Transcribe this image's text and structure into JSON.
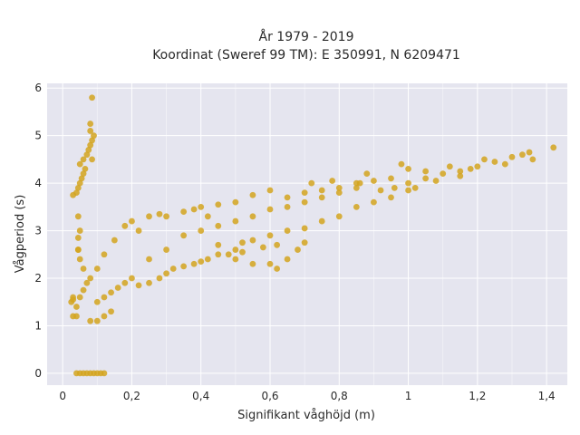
{
  "chart_data": {
    "type": "scatter",
    "title_line1": "År 1979 - 2019",
    "title_line2": "Koordinat (Sweref 99 TM): E 350991, N 6209471",
    "xlabel": "Signifikant våghöjd (m)",
    "ylabel": "Vågperiod (s)",
    "xlim": [
      -0.045,
      1.46
    ],
    "ylim": [
      -0.25,
      6.1
    ],
    "xticks": [
      0,
      0.2,
      0.4,
      0.6,
      0.8,
      1.0,
      1.2,
      1.4
    ],
    "xtick_labels": [
      "0",
      "0,2",
      "0,4",
      "0,6",
      "0,8",
      "1",
      "1,2",
      "1,4"
    ],
    "yticks": [
      0,
      1,
      2,
      3,
      4,
      5,
      6
    ],
    "ytick_labels": [
      "0",
      "1",
      "2",
      "3",
      "4",
      "5",
      "6"
    ],
    "grid": true,
    "marker_color": "#D4A51E",
    "plot_background": "#E5E5EF",
    "points": [
      [
        0.04,
        0.0
      ],
      [
        0.05,
        0.0
      ],
      [
        0.06,
        0.0
      ],
      [
        0.07,
        0.0
      ],
      [
        0.08,
        0.0
      ],
      [
        0.09,
        0.0
      ],
      [
        0.1,
        0.0
      ],
      [
        0.11,
        0.0
      ],
      [
        0.12,
        0.0
      ],
      [
        0.03,
        1.55
      ],
      [
        0.03,
        1.6
      ],
      [
        0.025,
        1.5
      ],
      [
        0.03,
        1.2
      ],
      [
        0.04,
        1.2
      ],
      [
        0.04,
        1.4
      ],
      [
        0.05,
        1.6
      ],
      [
        0.06,
        1.75
      ],
      [
        0.07,
        1.9
      ],
      [
        0.08,
        2.0
      ],
      [
        0.06,
        2.2
      ],
      [
        0.05,
        2.4
      ],
      [
        0.045,
        2.6
      ],
      [
        0.045,
        3.3
      ],
      [
        0.05,
        3.0
      ],
      [
        0.045,
        2.85
      ],
      [
        0.045,
        2.6
      ],
      [
        0.03,
        3.75
      ],
      [
        0.04,
        3.8
      ],
      [
        0.045,
        3.9
      ],
      [
        0.05,
        4.0
      ],
      [
        0.055,
        4.1
      ],
      [
        0.06,
        4.2
      ],
      [
        0.065,
        4.3
      ],
      [
        0.05,
        4.4
      ],
      [
        0.06,
        4.5
      ],
      [
        0.07,
        4.6
      ],
      [
        0.075,
        4.7
      ],
      [
        0.08,
        4.8
      ],
      [
        0.085,
        4.9
      ],
      [
        0.09,
        5.0
      ],
      [
        0.08,
        5.1
      ],
      [
        0.085,
        4.5
      ],
      [
        0.08,
        5.25
      ],
      [
        0.085,
        5.8
      ],
      [
        0.08,
        1.1
      ],
      [
        0.1,
        1.1
      ],
      [
        0.12,
        1.2
      ],
      [
        0.14,
        1.3
      ],
      [
        0.1,
        1.5
      ],
      [
        0.12,
        1.6
      ],
      [
        0.14,
        1.7
      ],
      [
        0.16,
        1.8
      ],
      [
        0.18,
        1.9
      ],
      [
        0.2,
        2.0
      ],
      [
        0.1,
        2.2
      ],
      [
        0.12,
        2.5
      ],
      [
        0.15,
        2.8
      ],
      [
        0.18,
        3.1
      ],
      [
        0.2,
        3.2
      ],
      [
        0.22,
        3.0
      ],
      [
        0.25,
        3.3
      ],
      [
        0.28,
        3.35
      ],
      [
        0.3,
        3.3
      ],
      [
        0.35,
        3.4
      ],
      [
        0.38,
        3.45
      ],
      [
        0.22,
        1.85
      ],
      [
        0.25,
        1.9
      ],
      [
        0.28,
        2.0
      ],
      [
        0.3,
        2.1
      ],
      [
        0.32,
        2.2
      ],
      [
        0.35,
        2.25
      ],
      [
        0.38,
        2.3
      ],
      [
        0.4,
        2.35
      ],
      [
        0.42,
        2.4
      ],
      [
        0.45,
        2.5
      ],
      [
        0.48,
        2.5
      ],
      [
        0.5,
        2.6
      ],
      [
        0.52,
        2.55
      ],
      [
        0.25,
        2.4
      ],
      [
        0.3,
        2.6
      ],
      [
        0.35,
        2.9
      ],
      [
        0.4,
        3.0
      ],
      [
        0.45,
        3.1
      ],
      [
        0.5,
        3.2
      ],
      [
        0.55,
        3.3
      ],
      [
        0.6,
        3.45
      ],
      [
        0.65,
        3.5
      ],
      [
        0.7,
        3.6
      ],
      [
        0.75,
        3.7
      ],
      [
        0.8,
        3.8
      ],
      [
        0.85,
        3.9
      ],
      [
        0.55,
        2.8
      ],
      [
        0.6,
        2.9
      ],
      [
        0.65,
        3.0
      ],
      [
        0.7,
        3.05
      ],
      [
        0.75,
        3.2
      ],
      [
        0.8,
        3.3
      ],
      [
        0.85,
        3.5
      ],
      [
        0.9,
        3.6
      ],
      [
        0.95,
        3.7
      ],
      [
        1.0,
        3.85
      ],
      [
        0.5,
        2.4
      ],
      [
        0.55,
        2.3
      ],
      [
        0.6,
        2.3
      ],
      [
        0.62,
        2.2
      ],
      [
        0.65,
        2.4
      ],
      [
        0.68,
        2.6
      ],
      [
        0.7,
        2.75
      ],
      [
        0.45,
        2.7
      ],
      [
        0.52,
        2.75
      ],
      [
        0.58,
        2.65
      ],
      [
        0.62,
        2.7
      ],
      [
        0.65,
        3.7
      ],
      [
        0.7,
        3.8
      ],
      [
        0.75,
        3.85
      ],
      [
        0.8,
        3.9
      ],
      [
        0.85,
        4.0
      ],
      [
        0.9,
        4.05
      ],
      [
        0.95,
        4.1
      ],
      [
        1.0,
        4.0
      ],
      [
        1.05,
        4.1
      ],
      [
        1.1,
        4.2
      ],
      [
        1.15,
        4.25
      ],
      [
        1.2,
        4.35
      ],
      [
        1.25,
        4.45
      ],
      [
        1.3,
        4.55
      ],
      [
        1.35,
        4.65
      ],
      [
        1.42,
        4.75
      ],
      [
        1.05,
        4.25
      ],
      [
        1.12,
        4.35
      ],
      [
        1.18,
        4.3
      ],
      [
        1.22,
        4.5
      ],
      [
        1.28,
        4.4
      ],
      [
        1.33,
        4.6
      ],
      [
        1.36,
        4.5
      ],
      [
        1.02,
        3.9
      ],
      [
        1.08,
        4.05
      ],
      [
        1.15,
        4.15
      ],
      [
        0.96,
        3.9
      ],
      [
        0.92,
        3.85
      ],
      [
        1.0,
        4.3
      ],
      [
        0.98,
        4.4
      ],
      [
        0.88,
        4.2
      ],
      [
        0.86,
        4.0
      ],
      [
        0.78,
        4.05
      ],
      [
        0.72,
        4.0
      ],
      [
        0.55,
        3.75
      ],
      [
        0.6,
        3.85
      ],
      [
        0.5,
        3.6
      ],
      [
        0.45,
        3.55
      ],
      [
        0.4,
        3.5
      ],
      [
        0.42,
        3.3
      ]
    ]
  }
}
